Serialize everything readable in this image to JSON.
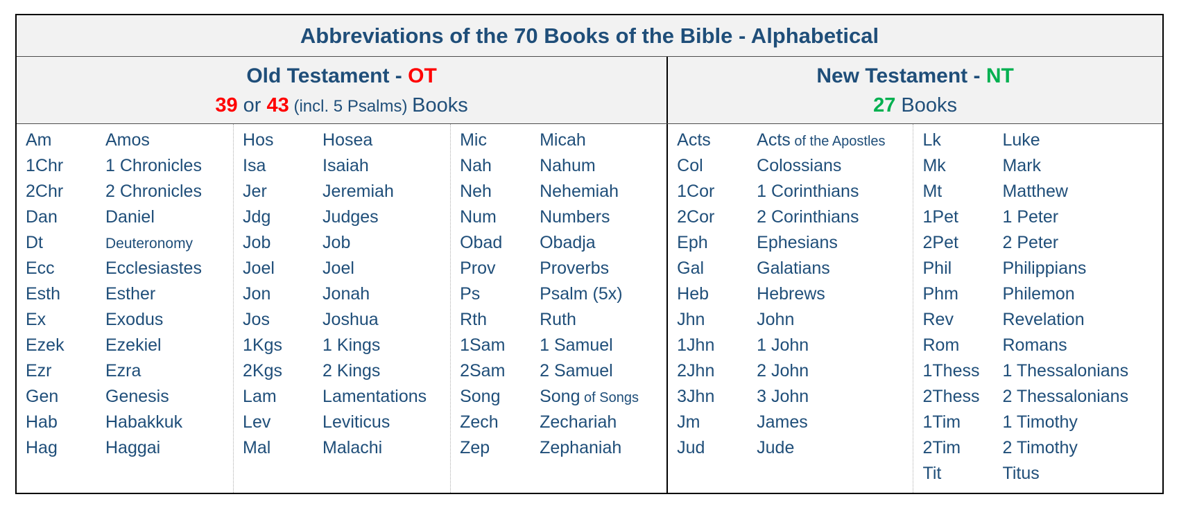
{
  "title": "Abbreviations of the 70 Books of the Bible - Alphabetical",
  "colors": {
    "text_blue": "#1F4E79",
    "accent_red": "#FF0000",
    "accent_green": "#00B050",
    "header_bg": "#F2F2F2",
    "border": "#000000"
  },
  "ot": {
    "header": {
      "title": "Old Testament - ",
      "abbr": "OT",
      "count1": "39",
      "or_text": " or ",
      "count2": "43",
      "incl_text": " (incl. 5 Psalms) ",
      "books_text": "Books"
    },
    "columns": [
      [
        {
          "abbr": "Am",
          "name": "Amos"
        },
        {
          "abbr": "1Chr",
          "name": "1 Chronicles"
        },
        {
          "abbr": "2Chr",
          "name": "2 Chronicles"
        },
        {
          "abbr": "Dan",
          "name": "Daniel"
        },
        {
          "abbr": "Dt",
          "name": "Deuteronomy",
          "small": true
        },
        {
          "abbr": "Ecc",
          "name": "Ecclesiastes"
        },
        {
          "abbr": "Esth",
          "name": "Esther"
        },
        {
          "abbr": "Ex",
          "name": "Exodus"
        },
        {
          "abbr": "Ezek",
          "name": "Ezekiel"
        },
        {
          "abbr": "Ezr",
          "name": "Ezra"
        },
        {
          "abbr": "Gen",
          "name": "Genesis"
        },
        {
          "abbr": "Hab",
          "name": "Habakkuk"
        },
        {
          "abbr": "Hag",
          "name": "Haggai"
        }
      ],
      [
        {
          "abbr": "Hos",
          "name": "Hosea"
        },
        {
          "abbr": "Isa",
          "name": "Isaiah"
        },
        {
          "abbr": "Jer",
          "name": "Jeremiah"
        },
        {
          "abbr": "Jdg",
          "name": "Judges"
        },
        {
          "abbr": "Job",
          "name": "Job"
        },
        {
          "abbr": "Joel",
          "name": "Joel"
        },
        {
          "abbr": "Jon",
          "name": "Jonah"
        },
        {
          "abbr": "Jos",
          "name": "Joshua"
        },
        {
          "abbr": "1Kgs",
          "name": "1 Kings"
        },
        {
          "abbr": "2Kgs",
          "name": "2 Kings"
        },
        {
          "abbr": "Lam",
          "name": "Lamentations"
        },
        {
          "abbr": "Lev",
          "name": "Leviticus"
        },
        {
          "abbr": "Mal",
          "name": "Malachi"
        }
      ],
      [
        {
          "abbr": "Mic",
          "name": "Micah"
        },
        {
          "abbr": "Nah",
          "name": "Nahum"
        },
        {
          "abbr": "Neh",
          "name": "Nehemiah"
        },
        {
          "abbr": "Num",
          "name": "Numbers"
        },
        {
          "abbr": "Obad",
          "name": "Obadja"
        },
        {
          "abbr": "Prov",
          "name": "Proverbs"
        },
        {
          "abbr": "Ps",
          "name": "Psalm (5x)"
        },
        {
          "abbr": "Rth",
          "name": "Ruth"
        },
        {
          "abbr": "1Sam",
          "name": "1 Samuel"
        },
        {
          "abbr": "2Sam",
          "name": "2 Samuel"
        },
        {
          "abbr": "Song",
          "name": "Song",
          "name_small": " of Songs"
        },
        {
          "abbr": "Zech",
          "name": "Zechariah"
        },
        {
          "abbr": "Zep",
          "name": "Zephaniah"
        }
      ]
    ]
  },
  "nt": {
    "header": {
      "title": "New Testament - ",
      "abbr": "NT",
      "count": "27",
      "books_text": " Books"
    },
    "columns": [
      [
        {
          "abbr": "Acts",
          "name": "Acts",
          "name_small": " of the Apostles"
        },
        {
          "abbr": "Col",
          "name": "Colossians"
        },
        {
          "abbr": "1Cor",
          "name": "1 Corinthians"
        },
        {
          "abbr": "2Cor",
          "name": "2 Corinthians"
        },
        {
          "abbr": "Eph",
          "name": "Ephesians"
        },
        {
          "abbr": "Gal",
          "name": "Galatians"
        },
        {
          "abbr": "Heb",
          "name": "Hebrews"
        },
        {
          "abbr": "Jhn",
          "name": "John"
        },
        {
          "abbr": "1Jhn",
          "name": "1 John"
        },
        {
          "abbr": "2Jhn",
          "name": "2 John"
        },
        {
          "abbr": "3Jhn",
          "name": "3 John"
        },
        {
          "abbr": "Jm",
          "name": "James"
        },
        {
          "abbr": "Jud",
          "name": "Jude"
        }
      ],
      [
        {
          "abbr": "Lk",
          "name": "Luke"
        },
        {
          "abbr": "Mk",
          "name": "Mark"
        },
        {
          "abbr": "Mt",
          "name": "Matthew"
        },
        {
          "abbr": "1Pet",
          "name": "1 Peter"
        },
        {
          "abbr": "2Pet",
          "name": "2 Peter"
        },
        {
          "abbr": "Phil",
          "name": "Philippians"
        },
        {
          "abbr": "Phm",
          "name": "Philemon"
        },
        {
          "abbr": "Rev",
          "name": "Revelation"
        },
        {
          "abbr": "Rom",
          "name": "Romans"
        },
        {
          "abbr": "1Thess",
          "name": "1 Thessalonians"
        },
        {
          "abbr": "2Thess",
          "name": "2 Thessalonians"
        },
        {
          "abbr": "1Tim",
          "name": "1 Timothy"
        },
        {
          "abbr": "2Tim",
          "name": "2 Timothy"
        },
        {
          "abbr": "Tit",
          "name": "Titus"
        }
      ]
    ]
  }
}
